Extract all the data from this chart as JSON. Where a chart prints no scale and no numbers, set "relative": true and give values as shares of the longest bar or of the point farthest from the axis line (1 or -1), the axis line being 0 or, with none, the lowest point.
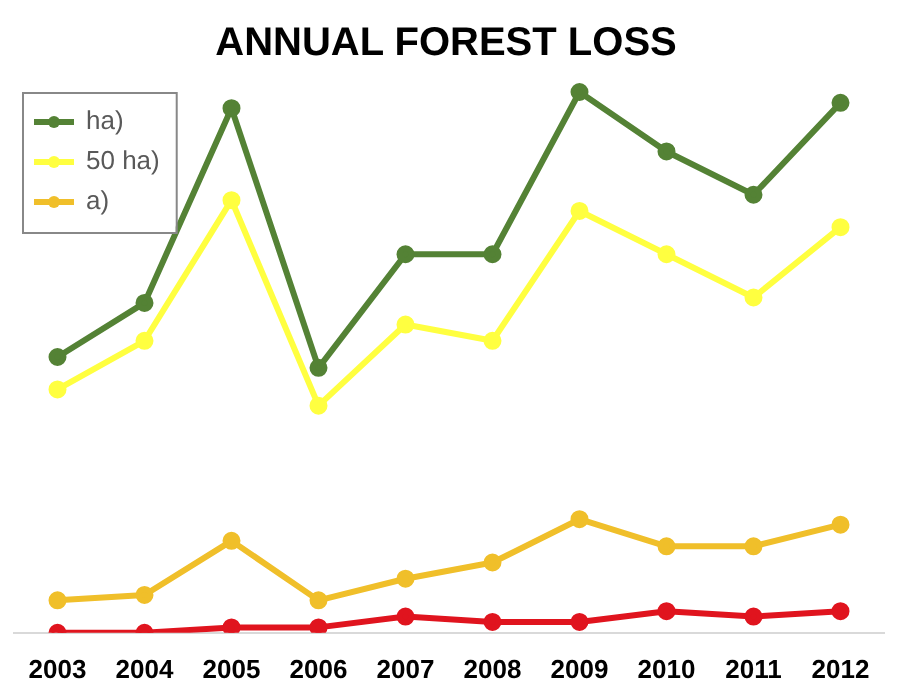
{
  "chart_data": {
    "type": "line",
    "title": "ANNUAL FOREST LOSS",
    "categories": [
      "2003",
      "2004",
      "2005",
      "2006",
      "2007",
      "2008",
      "2009",
      "2010",
      "2011",
      "2012"
    ],
    "relative": true,
    "legend": "top left",
    "marker": "circle",
    "grid": false,
    "series": [
      {
        "name": "ha)",
        "color": "#548235",
        "values": [
          0.51,
          0.61,
          0.97,
          0.49,
          0.7,
          0.7,
          1,
          0.89,
          0.81,
          0.98
        ]
      },
      {
        "name": "50 ha)",
        "color": "#ffff40",
        "values": [
          0.45,
          0.54,
          0.8,
          0.42,
          0.57,
          0.54,
          0.78,
          0.7,
          0.62,
          0.75
        ]
      },
      {
        "name": "a)",
        "color": "#f0bf2a",
        "values": [
          0.06,
          0.07,
          0.17,
          0.06,
          0.1,
          0.13,
          0.21,
          0.16,
          0.16,
          0.2
        ]
      },
      {
        "color": "#e0141e",
        "values": [
          0,
          0,
          0.01,
          0.01,
          0.03,
          0.02,
          0.02,
          0.04,
          0.03,
          0.04
        ]
      }
    ]
  }
}
